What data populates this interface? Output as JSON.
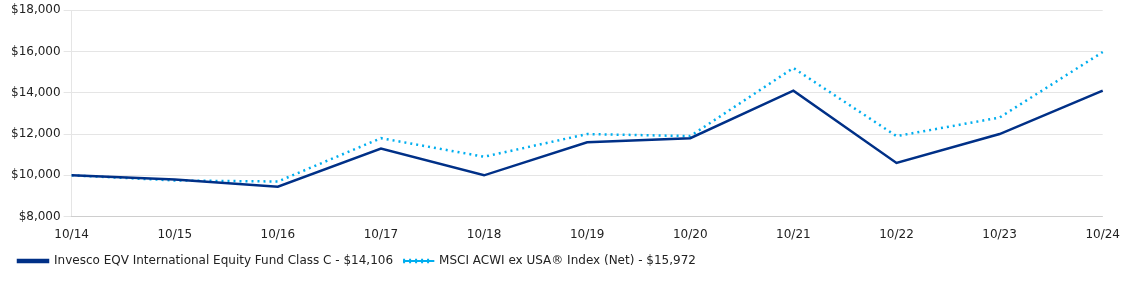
{
  "chart_data": {
    "type": "line",
    "categories": [
      "10/14",
      "10/15",
      "10/16",
      "10/17",
      "10/18",
      "10/19",
      "10/20",
      "10/21",
      "10/22",
      "10/23",
      "10/24"
    ],
    "series": [
      {
        "name": "Invesco EQV International Equity Fund Class C - $14,106",
        "color": "#003087",
        "line_style": "solid",
        "values": [
          10000,
          9800,
          9450,
          11300,
          10000,
          11600,
          11800,
          14100,
          10600,
          12000,
          14106
        ]
      },
      {
        "name": "MSCI ACWI ex USA® Index (Net) - $15,972",
        "color": "#00AEEF",
        "line_style": "dotted",
        "values": [
          10000,
          9750,
          9700,
          11800,
          10900,
          12000,
          11900,
          15200,
          11900,
          12800,
          15972
        ]
      }
    ],
    "ylim": [
      8000,
      18000
    ],
    "yticks": [
      {
        "value": 8000,
        "label": "$8,000"
      },
      {
        "value": 10000,
        "label": "$10,000"
      },
      {
        "value": 12000,
        "label": "$12,000"
      },
      {
        "value": 14000,
        "label": "$14,000"
      },
      {
        "value": 16000,
        "label": "$16,000"
      },
      {
        "value": 18000,
        "label": "$18,000"
      }
    ],
    "grid": true,
    "legend": "bottom"
  }
}
